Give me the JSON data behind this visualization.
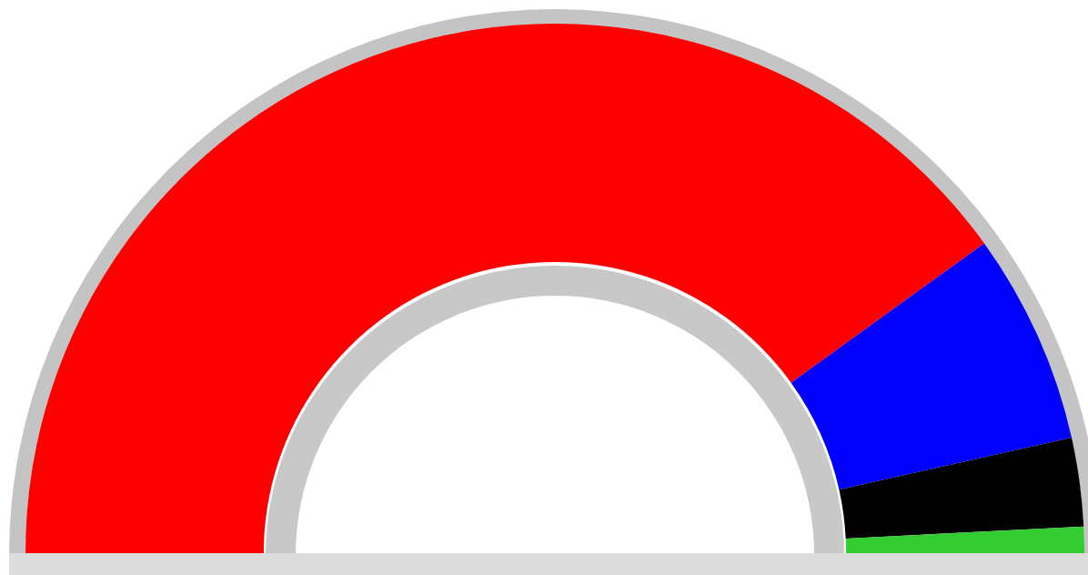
{
  "chart_data": {
    "type": "donut",
    "categories": [
      null,
      null,
      null,
      null
    ],
    "values": [
      80.1,
      12.9,
      5.4,
      1.6
    ],
    "colors": [
      "#ff0000",
      "#0000ff",
      "#000000",
      "#33cc33"
    ]
  }
}
